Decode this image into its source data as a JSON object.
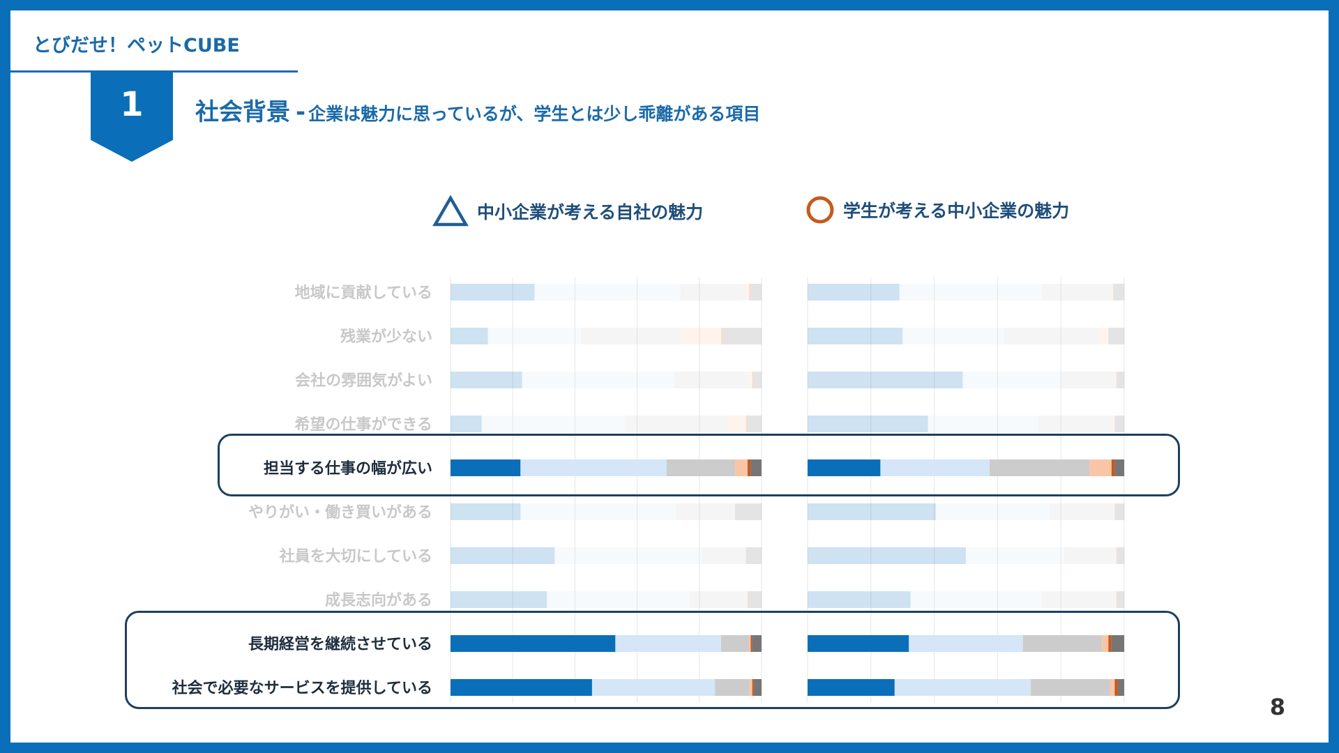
{
  "header": {
    "brand": "とびだせ！ペットCUBE",
    "section_number": "1",
    "title": "社会背景",
    "title_separator": "-",
    "subtitle": "企業は魅力に思っているが、学生とは少し乖離がある項目"
  },
  "legend": {
    "company_label": "中小企業が考える自社の魅力",
    "company_marker": "triangle-icon",
    "student_label": "学生が考える中小企業の魅力",
    "student_marker": "circle-icon"
  },
  "page_number": "8",
  "colors": {
    "strong_agree": "#0a6fb8",
    "agree": "#d4e6f7",
    "neutral": "#cccccc",
    "disagree": "#f8c6a6",
    "strong_disagree": "#c65a1e",
    "no_answer": "#767676",
    "highlight_border": "#1d3f5e",
    "label_highlighted": "#1e2d3d",
    "label_faded": "#c8c8c8"
  },
  "chart_data": {
    "type": "bar",
    "stacked": "100%",
    "orientation": "horizontal",
    "categories": [
      "地域に貢献している",
      "残業が少ない",
      "会社の雰囲気がよい",
      "希望の仕事ができる",
      "担当する仕事の幅が広い",
      "やりがい・働き買いがある",
      "社員を大切にしている",
      "成長志向がある",
      "長期経営を継続させている",
      "社会で必要なサービスを提供している"
    ],
    "highlighted": [
      false,
      false,
      false,
      false,
      true,
      false,
      false,
      false,
      true,
      true
    ],
    "segments": [
      "strong_agree",
      "agree",
      "neutral",
      "disagree",
      "strong_disagree",
      "no_answer"
    ],
    "panels": [
      {
        "name": "中小企業が考える自社の魅力",
        "values": [
          [
            27,
            47,
            21,
            1,
            0.5,
            3.5
          ],
          [
            12,
            30,
            32,
            13,
            1,
            12
          ],
          [
            23,
            49,
            24,
            1,
            0.5,
            2.5
          ],
          [
            10,
            46,
            33,
            6,
            0.5,
            4.5
          ],
          [
            22.5,
            47,
            22,
            4,
            1,
            3.5
          ],
          [
            22.5,
            50,
            19,
            0,
            0,
            8.5
          ],
          [
            33.5,
            47.5,
            14,
            0,
            0,
            5
          ],
          [
            31,
            46,
            18,
            0.5,
            0,
            4.5
          ],
          [
            53,
            34,
            9,
            0.5,
            0.5,
            3
          ],
          [
            45.5,
            39.5,
            11,
            1,
            0.5,
            2.5
          ]
        ]
      },
      {
        "name": "学生が考える中小企業の魅力",
        "values": [
          [
            29,
            45,
            22,
            0.5,
            0,
            3.5
          ],
          [
            30,
            32,
            30,
            3,
            0,
            5
          ],
          [
            49,
            31,
            17,
            0.5,
            0,
            2.5
          ],
          [
            38,
            35,
            23,
            1,
            0,
            3
          ],
          [
            23,
            34.5,
            31.5,
            7,
            1,
            3
          ],
          [
            40.5,
            36,
            20,
            0.5,
            0,
            3
          ],
          [
            50,
            31,
            16,
            0.5,
            0,
            2.5
          ],
          [
            32.5,
            41.5,
            23,
            0.5,
            0,
            2.5
          ],
          [
            32,
            36,
            25,
            2,
            1,
            4
          ],
          [
            27.5,
            43,
            25,
            1.5,
            1,
            2
          ]
        ]
      }
    ],
    "xlim": [
      0,
      100
    ],
    "grid": true,
    "legend_position": "top"
  }
}
